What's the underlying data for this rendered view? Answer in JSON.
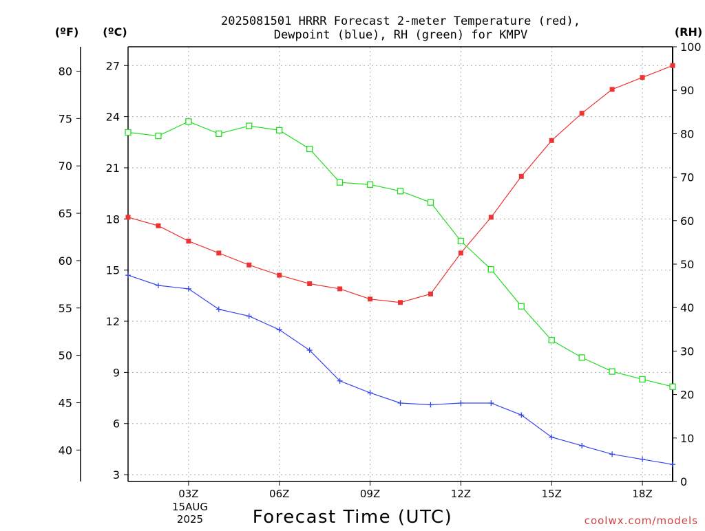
{
  "title_line1": "2025081501 HRRR Forecast 2-meter Temperature (red),",
  "title_line2": "Dewpoint (blue), RH (green) for KMPV",
  "unit_f": "(ºF)",
  "unit_c": "(ºC)",
  "unit_rh": "(RH)",
  "xlabel": "Forecast Time (UTC)",
  "date_line1": "15AUG",
  "date_line2": "2025",
  "watermark": "coolwx.com/models",
  "colors": {
    "temperature": "#ee3333",
    "dewpoint": "#3344ee",
    "rh": "#22dd22"
  },
  "chart_data": {
    "type": "line",
    "x": [
      1,
      2,
      3,
      4,
      5,
      6,
      7,
      8,
      9,
      10,
      11,
      12,
      13,
      14,
      15,
      16,
      17,
      18,
      19
    ],
    "x_ticks": [
      {
        "x": 3,
        "label": "03Z"
      },
      {
        "x": 6,
        "label": "06Z"
      },
      {
        "x": 9,
        "label": "09Z"
      },
      {
        "x": 12,
        "label": "12Z"
      },
      {
        "x": 15,
        "label": "15Z"
      },
      {
        "x": 18,
        "label": "18Z"
      }
    ],
    "xlim": [
      1,
      19
    ],
    "y_left_c": {
      "ticks": [
        3,
        6,
        9,
        12,
        15,
        18,
        21,
        24,
        27
      ],
      "ylim": [
        2.6,
        28.1
      ]
    },
    "y_left_f": {
      "ticks": [
        40,
        45,
        50,
        55,
        60,
        65,
        70,
        75,
        80
      ]
    },
    "y_right_rh": {
      "ticks": [
        0,
        10,
        20,
        30,
        40,
        50,
        60,
        70,
        80,
        90,
        100
      ],
      "ylim": [
        0,
        100
      ]
    },
    "grid": true,
    "series": [
      {
        "name": "Temperature",
        "axis": "c",
        "marker": "filled-square",
        "values": [
          18.1,
          17.6,
          16.7,
          16.0,
          15.3,
          14.7,
          14.2,
          13.9,
          13.3,
          13.1,
          13.6,
          16.0,
          18.1,
          20.5,
          22.6,
          24.2,
          25.6,
          26.3,
          27.0
        ]
      },
      {
        "name": "Dewpoint",
        "axis": "c",
        "marker": "plus",
        "values": [
          14.7,
          14.1,
          13.9,
          12.7,
          12.3,
          11.5,
          10.3,
          8.5,
          7.8,
          7.2,
          7.1,
          7.2,
          7.2,
          6.5,
          5.2,
          4.7,
          4.2,
          3.9,
          3.6
        ]
      },
      {
        "name": "RH",
        "axis": "rh",
        "marker": "open-square",
        "values": [
          80.3,
          79.5,
          82.8,
          80.0,
          81.8,
          80.8,
          76.5,
          68.8,
          68.3,
          66.8,
          64.2,
          55.3,
          48.8,
          40.3,
          32.5,
          28.5,
          25.3,
          23.5,
          21.8
        ]
      }
    ]
  }
}
